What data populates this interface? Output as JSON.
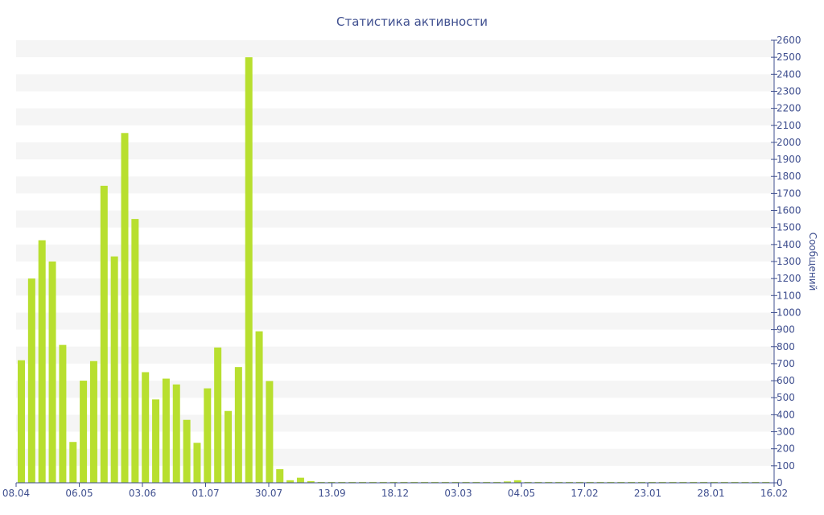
{
  "chart_data": {
    "type": "bar",
    "title": "Статистика активности",
    "xlabel": "",
    "ylabel": "Сообщений",
    "ylim": [
      0,
      2600
    ],
    "y_axis_side": "right",
    "grid": "horizontal bands",
    "legend": "none",
    "yticks": [
      "0",
      "100",
      "200",
      "300",
      "400",
      "500",
      "600",
      "700",
      "800",
      "900",
      "1000",
      "1100",
      "1200",
      "1300",
      "1400",
      "1500",
      "1600",
      "1700",
      "1800",
      "1900",
      "2000",
      "2100",
      "2200",
      "2300",
      "2400",
      "2500",
      "2600"
    ],
    "xticks": [
      "08.04",
      "06.05",
      "03.06",
      "01.07",
      "30.07",
      "13.09",
      "18.12",
      "03.03",
      "04.05",
      "17.02",
      "23.01",
      "28.01",
      "16.02"
    ],
    "values": [
      720,
      1200,
      1425,
      1300,
      810,
      240,
      600,
      715,
      1745,
      1330,
      2055,
      1550,
      650,
      490,
      612,
      578,
      370,
      235,
      555,
      795,
      422,
      680,
      2500,
      890,
      598,
      80,
      15,
      30,
      10,
      5,
      5,
      5,
      5,
      5,
      5,
      5,
      5,
      5,
      5,
      5,
      5,
      5,
      5,
      5,
      5,
      5,
      5,
      8,
      15,
      5,
      5,
      5,
      5,
      5,
      5,
      5,
      5,
      5,
      5,
      5,
      5,
      5,
      5,
      5,
      5,
      5,
      5,
      5,
      5,
      5,
      5,
      5,
      5
    ],
    "colors": {
      "bar": "#b8df2f",
      "axis": "#3f4f8f",
      "band": "#f5f5f5"
    }
  }
}
